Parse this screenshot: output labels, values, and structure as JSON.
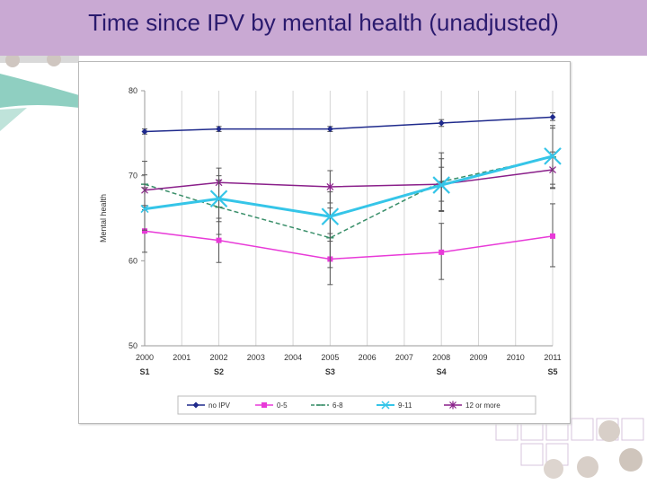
{
  "slide": {
    "title": "Time since IPV by mental health (unadjusted)"
  },
  "colors": {
    "title_bar": "#c9a9d3",
    "title_text": "#2a1a6e",
    "no_ipv": "#1f2a8c",
    "0_5": "#e83ad8",
    "6_8": "#3a8f6a",
    "9_11": "#35c5e8",
    "12_plus": "#8a1f8a"
  },
  "chart_data": {
    "type": "line",
    "title": "",
    "xlabel": "",
    "ylabel": "Mental health",
    "ylim": [
      50,
      80
    ],
    "yticks": [
      "50",
      "60",
      "70",
      "80"
    ],
    "x": [
      "2000",
      "2001",
      "2002",
      "2003",
      "2004",
      "2005",
      "2006",
      "2007",
      "2008",
      "2009",
      "2010",
      "2011"
    ],
    "survey_labels": [
      {
        "year": "2000",
        "label": "S1"
      },
      {
        "year": "2002",
        "label": "S2"
      },
      {
        "year": "2005",
        "label": "S3"
      },
      {
        "year": "2008",
        "label": "S4"
      },
      {
        "year": "2011",
        "label": "S5"
      }
    ],
    "grid": "vertical",
    "legend_position": "bottom",
    "series": [
      {
        "name": "no IPV",
        "color": "#1f2a8c",
        "marker": "diamond",
        "dash": "solid",
        "points": [
          {
            "x": "2000",
            "y": 75.2,
            "lo": 74.9,
            "hi": 75.5
          },
          {
            "x": "2002",
            "y": 75.5,
            "lo": 75.2,
            "hi": 75.8
          },
          {
            "x": "2005",
            "y": 75.5,
            "lo": 75.2,
            "hi": 75.8
          },
          {
            "x": "2008",
            "y": 76.2,
            "lo": 75.8,
            "hi": 76.6
          },
          {
            "x": "2011",
            "y": 76.9,
            "lo": 76.5,
            "hi": 77.4
          }
        ]
      },
      {
        "name": "0-5",
        "color": "#e83ad8",
        "marker": "square",
        "dash": "solid",
        "points": [
          {
            "x": "2000",
            "y": 63.5,
            "lo": 61.0,
            "hi": 66.0
          },
          {
            "x": "2002",
            "y": 62.4,
            "lo": 59.8,
            "hi": 65.0
          },
          {
            "x": "2005",
            "y": 60.2,
            "lo": 57.2,
            "hi": 63.2
          },
          {
            "x": "2008",
            "y": 61.0,
            "lo": 57.8,
            "hi": 64.4
          },
          {
            "x": "2011",
            "y": 62.9,
            "lo": 59.3,
            "hi": 66.7
          }
        ]
      },
      {
        "name": "6-8",
        "color": "#3a8f6a",
        "marker": "dash",
        "dash": "dashed",
        "points": [
          {
            "x": "2000",
            "y": 69.0,
            "lo": 66.3,
            "hi": 71.7
          },
          {
            "x": "2002",
            "y": 66.3,
            "lo": 63.1,
            "hi": 69.5
          },
          {
            "x": "2005",
            "y": 62.7,
            "lo": 59.2,
            "hi": 66.2
          },
          {
            "x": "2008",
            "y": 69.3,
            "lo": 65.9,
            "hi": 72.7
          },
          {
            "x": "2011",
            "y": 72.2,
            "lo": 68.5,
            "hi": 75.9
          }
        ]
      },
      {
        "name": "9-11",
        "color": "#35c5e8",
        "marker": "x",
        "dash": "solid",
        "points": [
          {
            "x": "2000",
            "y": 66.1,
            "lo": 63.6,
            "hi": 68.6
          },
          {
            "x": "2002",
            "y": 67.3,
            "lo": 64.6,
            "hi": 70.0
          },
          {
            "x": "2005",
            "y": 65.2,
            "lo": 62.3,
            "hi": 68.1
          },
          {
            "x": "2008",
            "y": 68.9,
            "lo": 65.8,
            "hi": 72.0
          },
          {
            "x": "2011",
            "y": 72.3,
            "lo": 69.0,
            "hi": 75.6
          }
        ]
      },
      {
        "name": "12 or more",
        "color": "#8a1f8a",
        "marker": "star",
        "dash": "solid",
        "points": [
          {
            "x": "2000",
            "y": 68.3,
            "lo": 66.5,
            "hi": 70.1
          },
          {
            "x": "2002",
            "y": 69.2,
            "lo": 67.5,
            "hi": 70.9
          },
          {
            "x": "2005",
            "y": 68.7,
            "lo": 66.8,
            "hi": 70.6
          },
          {
            "x": "2008",
            "y": 69.0,
            "lo": 67.0,
            "hi": 71.0
          },
          {
            "x": "2011",
            "y": 70.7,
            "lo": 68.6,
            "hi": 72.8
          }
        ]
      }
    ]
  }
}
